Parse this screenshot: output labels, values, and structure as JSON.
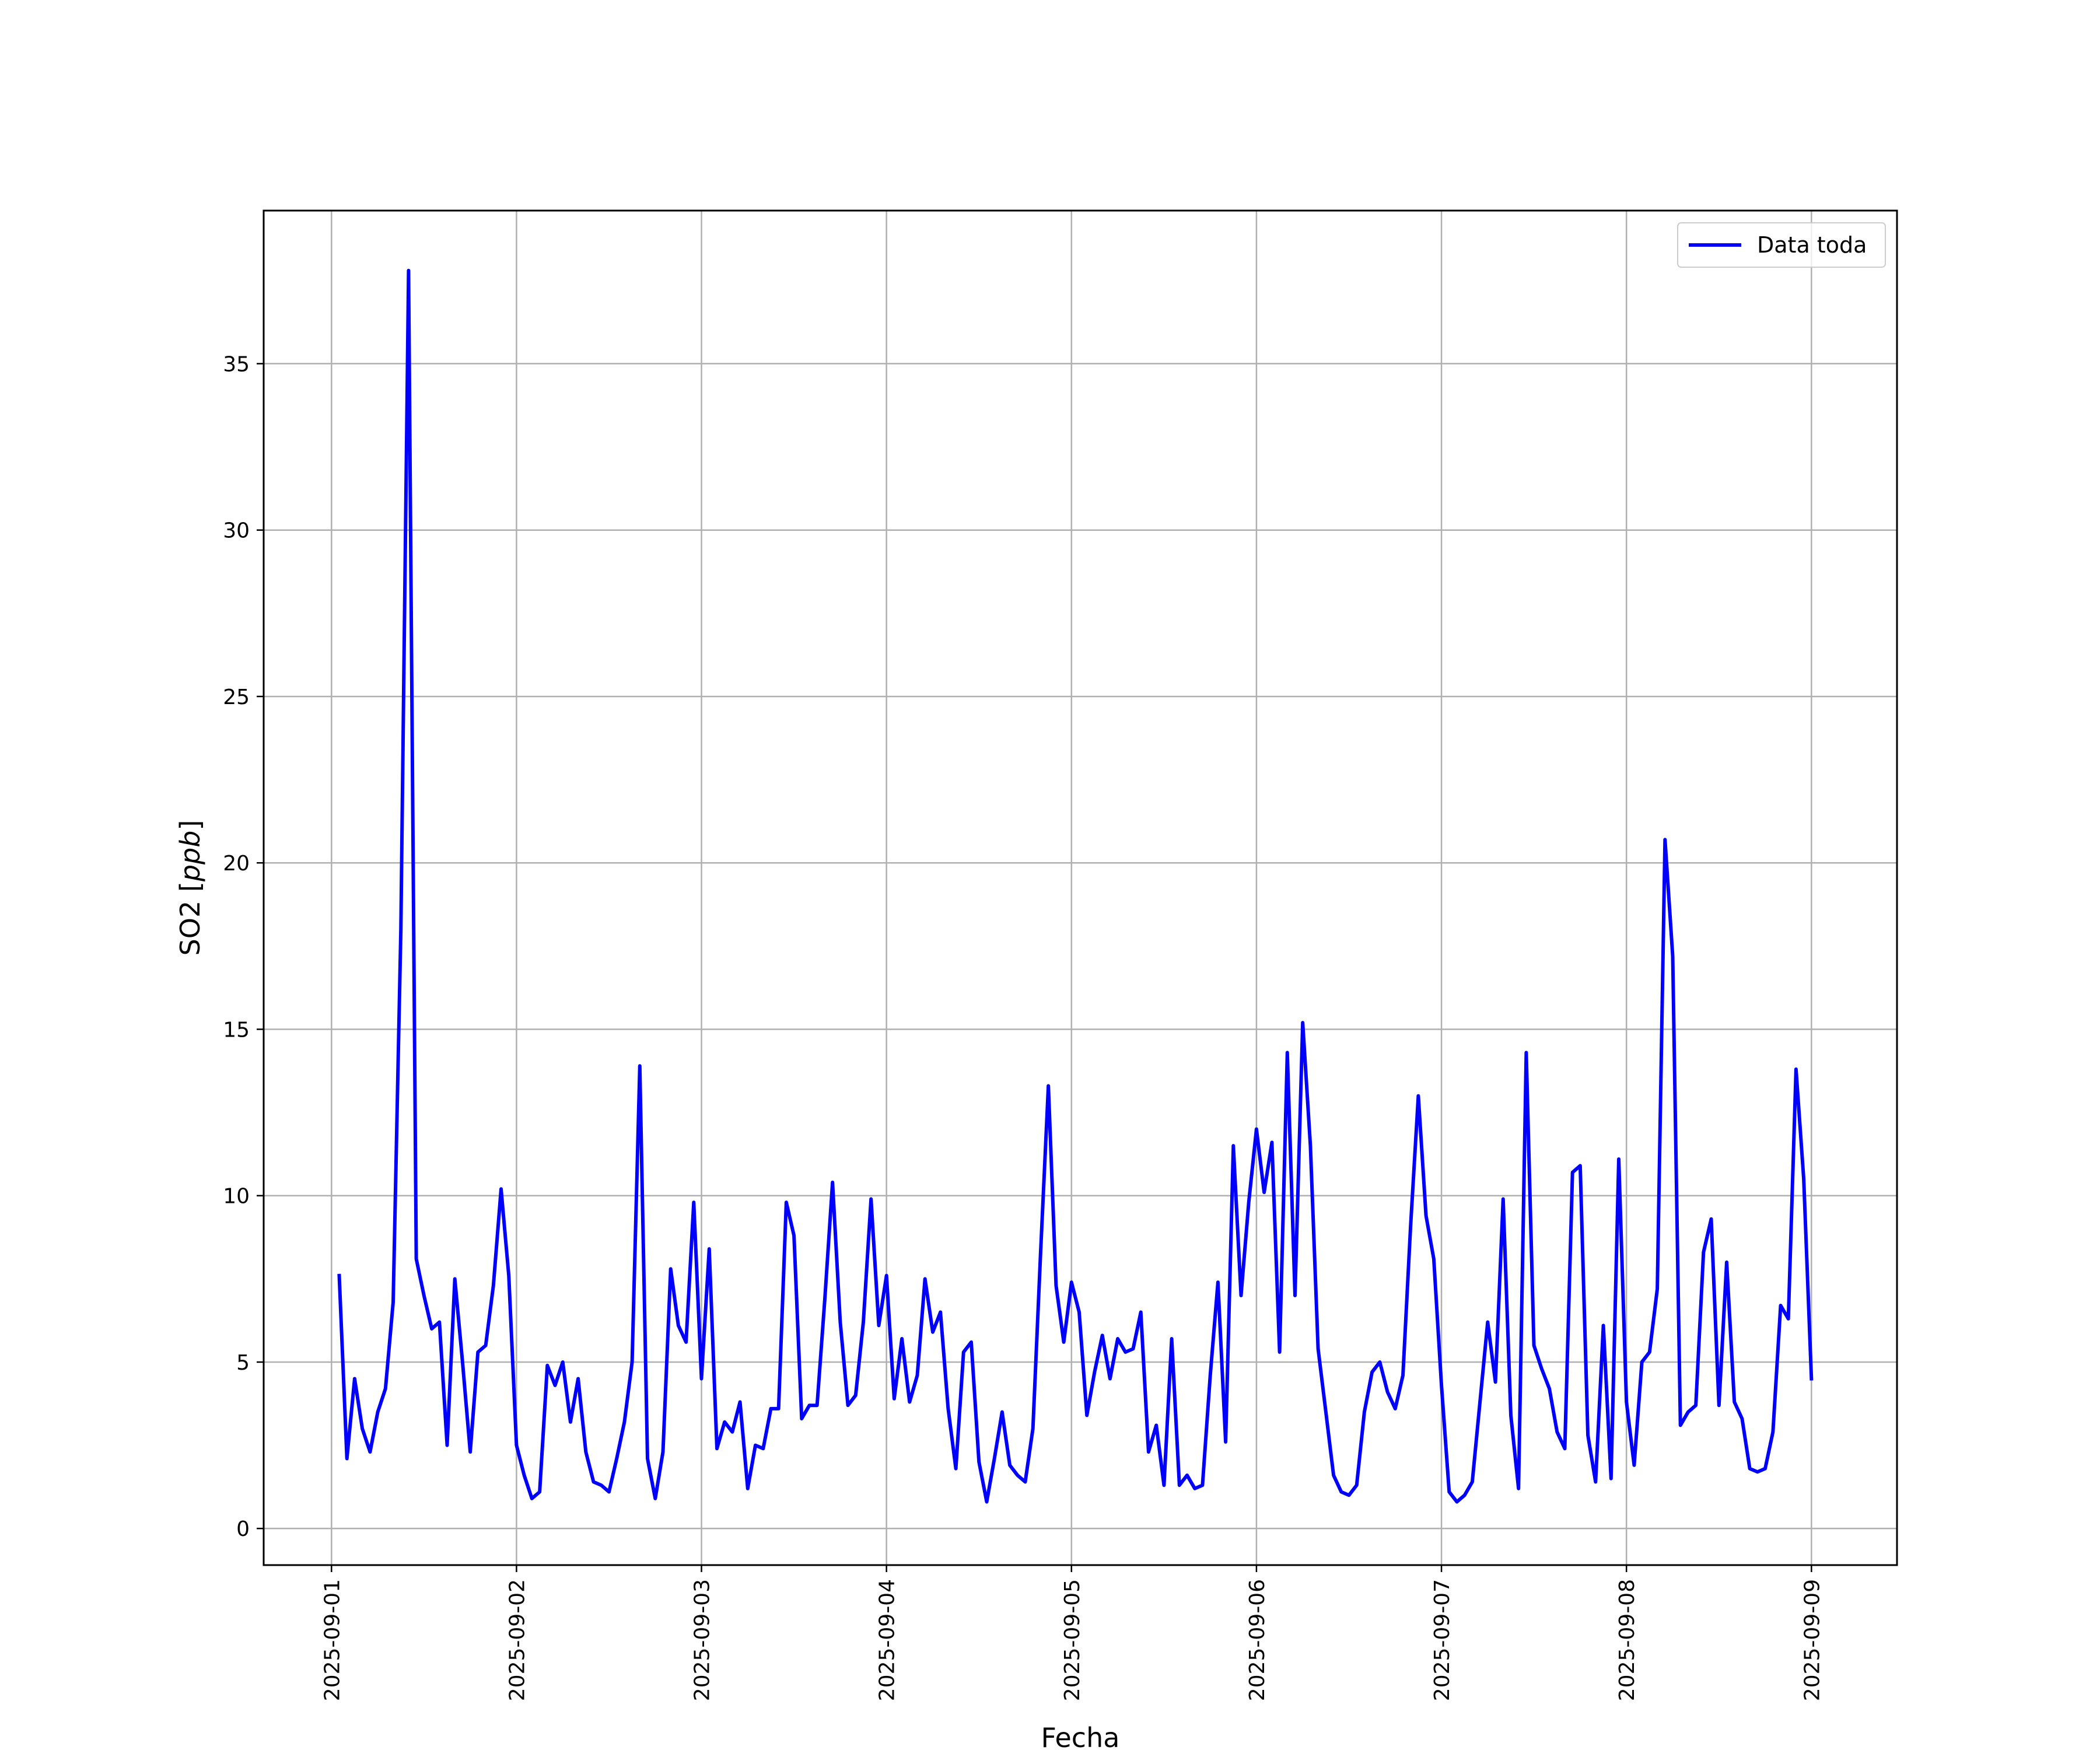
{
  "chart_data": {
    "type": "line",
    "title": "",
    "xlabel": "Fecha",
    "ylabel_text": "SO2 [",
    "ylabel_unit": "ppb",
    "ylabel_close": "]",
    "x_ticks": [
      "2025-09-01",
      "2025-09-02",
      "2025-09-03",
      "2025-09-04",
      "2025-09-05",
      "2025-09-06",
      "2025-09-07",
      "2025-09-08",
      "2025-09-09"
    ],
    "y_ticks": [
      0,
      5,
      10,
      15,
      20,
      25,
      30,
      35
    ],
    "xlim": [
      "2025-08-31T15:12:00",
      "2025-09-09T11:06:00"
    ],
    "ylim": [
      -1.1,
      39.6
    ],
    "grid": true,
    "legend_position": "top-right",
    "series": [
      {
        "name": "Data toda",
        "color": "#0000ff",
        "x_start": "2025-09-01T01:00:00",
        "x_step_hours": 1,
        "values": [
          7.6,
          2.1,
          4.5,
          3.0,
          2.3,
          3.5,
          4.2,
          6.8,
          18.0,
          37.8,
          8.1,
          7.0,
          6.0,
          6.2,
          2.5,
          7.5,
          5.0,
          2.3,
          5.3,
          5.5,
          7.3,
          10.2,
          7.6,
          2.5,
          1.6,
          0.9,
          1.1,
          4.9,
          4.3,
          5.0,
          3.2,
          4.5,
          2.3,
          1.4,
          1.3,
          1.1,
          2.1,
          3.2,
          5.0,
          13.9,
          2.1,
          0.9,
          2.3,
          7.8,
          6.1,
          5.6,
          9.8,
          4.5,
          8.4,
          2.4,
          3.2,
          2.9,
          3.8,
          1.2,
          2.5,
          2.4,
          3.6,
          3.6,
          9.8,
          8.8,
          3.3,
          3.7,
          3.7,
          6.9,
          10.4,
          6.2,
          3.7,
          4.0,
          6.2,
          9.9,
          6.1,
          7.6,
          3.9,
          5.7,
          3.8,
          4.6,
          7.5,
          5.9,
          6.5,
          3.6,
          1.8,
          5.3,
          5.6,
          2.0,
          0.8,
          2.1,
          3.5,
          1.9,
          1.6,
          1.4,
          3.0,
          8.3,
          13.3,
          7.3,
          5.6,
          7.4,
          6.5,
          3.4,
          4.7,
          5.8,
          4.5,
          5.7,
          5.3,
          5.4,
          6.5,
          2.3,
          3.1,
          1.3,
          5.7,
          1.3,
          1.6,
          1.2,
          1.3,
          4.6,
          7.4,
          2.6,
          11.5,
          7.0,
          9.8,
          12.0,
          10.1,
          11.6,
          5.3,
          14.3,
          7.0,
          15.2,
          11.5,
          5.4,
          3.5,
          1.6,
          1.1,
          1.0,
          1.3,
          3.5,
          4.7,
          5.0,
          4.1,
          3.6,
          4.6,
          9.1,
          13.0,
          9.4,
          8.1,
          4.3,
          1.1,
          0.8,
          1.0,
          1.4,
          3.8,
          6.2,
          4.4,
          9.9,
          3.4,
          1.2,
          14.3,
          5.5,
          4.8,
          4.2,
          2.9,
          2.4,
          10.7,
          10.9,
          2.8,
          1.4,
          6.1,
          1.5,
          11.1,
          3.8,
          1.9,
          5.0,
          5.3,
          7.2,
          20.7,
          17.2,
          3.1,
          3.5,
          3.7,
          8.3,
          9.3,
          3.7,
          8.0,
          3.8,
          3.3,
          1.8,
          1.7,
          1.8,
          2.9,
          6.7,
          6.3,
          13.8,
          10.5,
          4.5
        ]
      }
    ]
  }
}
